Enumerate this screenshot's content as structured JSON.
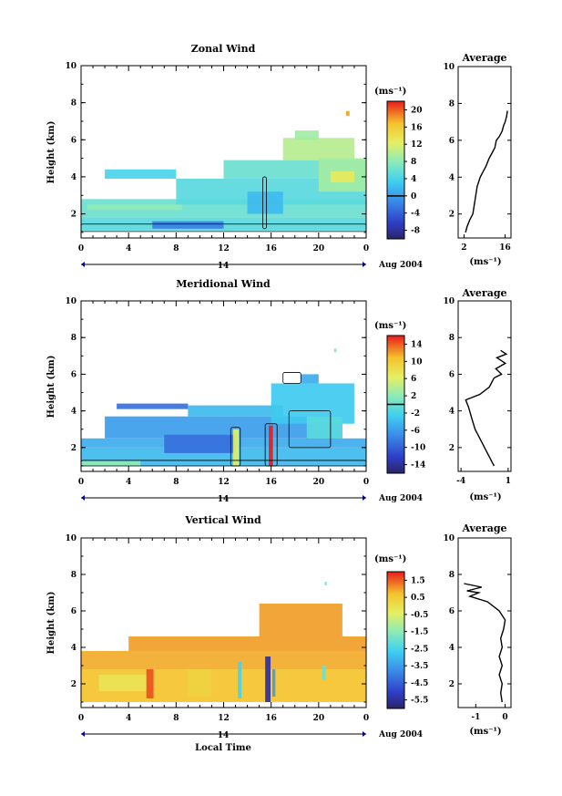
{
  "figure": {
    "x_label": "Local Time",
    "date_label": "Aug 2004",
    "day_label": "14",
    "avg_title": "Average",
    "unit_label": "(ms⁻¹)",
    "avg_unit": "(ms⁻¹)",
    "y_label": "Height (km)"
  },
  "chart_data": [
    {
      "id": "zonal",
      "type": "heatmap",
      "title": "Zonal Wind",
      "ylabel": "Height (km)",
      "x_ticks": [
        "0",
        "4",
        "8",
        "12",
        "16",
        "20",
        "0"
      ],
      "xlim": [
        0,
        24
      ],
      "ylim": [
        0.7,
        10
      ],
      "y_ticks": [
        "2",
        "4",
        "6",
        "8",
        "10"
      ],
      "cbar": {
        "ticks": [
          "20",
          "16",
          "12",
          "8",
          "4",
          "0",
          "-4",
          "-8"
        ],
        "range": [
          -10,
          22
        ],
        "zero": 0
      },
      "profile": {
        "title": "Average",
        "x_ticks": [
          "2",
          "16"
        ],
        "xlim": [
          0,
          18
        ],
        "ylim": [
          0.7,
          10
        ],
        "y_ticks": [
          "2",
          "4",
          "6",
          "8",
          "10"
        ],
        "points": [
          [
            2.5,
            1.0
          ],
          [
            3,
            1.3
          ],
          [
            4,
            1.7
          ],
          [
            5,
            2.0
          ],
          [
            5.5,
            2.5
          ],
          [
            6,
            3.0
          ],
          [
            6.5,
            3.5
          ],
          [
            7.5,
            4.0
          ],
          [
            8.5,
            4.3
          ],
          [
            9.5,
            4.6
          ],
          [
            10.5,
            5.0
          ],
          [
            11.5,
            5.3
          ],
          [
            12.5,
            5.6
          ],
          [
            13,
            6.0
          ],
          [
            14,
            6.2
          ],
          [
            15,
            6.5
          ],
          [
            15.5,
            6.8
          ],
          [
            16,
            7.0
          ],
          [
            16.5,
            7.3
          ],
          [
            16.8,
            7.6
          ]
        ]
      },
      "heat": [
        {
          "x": 0,
          "y": 1.8,
          "w": 24,
          "h": 1.0,
          "v": 6
        },
        {
          "x": 0,
          "y": 1.1,
          "w": 24,
          "h": 0.7,
          "v": 5
        },
        {
          "x": 0.5,
          "y": 2.2,
          "w": 8,
          "h": 0.3,
          "v": 8
        },
        {
          "x": 8,
          "y": 2.5,
          "w": 16,
          "h": 1.4,
          "v": 5
        },
        {
          "x": 12,
          "y": 3.9,
          "w": 12,
          "h": 1.0,
          "v": 6
        },
        {
          "x": 2,
          "y": 3.9,
          "w": 6,
          "h": 0.5,
          "v": 4
        },
        {
          "x": 17,
          "y": 4.9,
          "w": 6,
          "h": 1.2,
          "v": 10
        },
        {
          "x": 20,
          "y": 3.2,
          "w": 4,
          "h": 1.8,
          "v": 9
        },
        {
          "x": 21,
          "y": 3.7,
          "w": 2,
          "h": 0.6,
          "v": 13
        },
        {
          "x": 18,
          "y": 6.0,
          "w": 2,
          "h": 0.5,
          "v": 9
        },
        {
          "x": 22.3,
          "y": 7.3,
          "w": 0.3,
          "h": 0.25,
          "v": 18
        },
        {
          "x": 14,
          "y": 2.0,
          "w": 3,
          "h": 1.2,
          "v": 2
        },
        {
          "x": 6,
          "y": 1.2,
          "w": 6,
          "h": 0.4,
          "v": -2
        }
      ],
      "contours": [
        {
          "x": 15.3,
          "y": 1.2,
          "w": 0.3,
          "h": 2.8
        },
        {
          "x": 0,
          "y": 1.05,
          "w": 24,
          "h": 0.4
        }
      ]
    },
    {
      "id": "meridional",
      "type": "heatmap",
      "title": "Meridional Wind",
      "ylabel": "Height (km)",
      "x_ticks": [
        "0",
        "4",
        "8",
        "12",
        "16",
        "20",
        "0"
      ],
      "xlim": [
        0,
        24
      ],
      "ylim": [
        0.7,
        10
      ],
      "y_ticks": [
        "2",
        "4",
        "6",
        "8",
        "10"
      ],
      "cbar": {
        "ticks": [
          "14",
          "10",
          "6",
          "2",
          "-2",
          "-6",
          "-10",
          "-14"
        ],
        "range": [
          -16,
          16
        ],
        "zero": 0
      },
      "profile": {
        "title": "Average",
        "x_ticks": [
          "-4",
          "1"
        ],
        "xlim": [
          -4.3,
          1.3
        ],
        "ylim": [
          0.7,
          10
        ],
        "y_ticks": [
          "2",
          "4",
          "6",
          "8",
          "10"
        ],
        "points": [
          [
            -0.5,
            1.0
          ],
          [
            -1.0,
            1.5
          ],
          [
            -1.5,
            2.0
          ],
          [
            -2.0,
            2.5
          ],
          [
            -2.5,
            3.0
          ],
          [
            -2.8,
            3.5
          ],
          [
            -3.2,
            4.2
          ],
          [
            -3.5,
            4.6
          ],
          [
            -2.0,
            4.9
          ],
          [
            -1.0,
            5.3
          ],
          [
            -0.5,
            5.8
          ],
          [
            0.3,
            6.0
          ],
          [
            -0.3,
            6.3
          ],
          [
            0.7,
            6.6
          ],
          [
            -0.2,
            6.9
          ],
          [
            0.8,
            7.1
          ],
          [
            0.2,
            7.3
          ]
        ]
      },
      "heat": [
        {
          "x": 0,
          "y": 1.0,
          "w": 24,
          "h": 1.0,
          "v": -4
        },
        {
          "x": 0,
          "y": 2.0,
          "w": 24,
          "h": 0.5,
          "v": -5
        },
        {
          "x": 2,
          "y": 2.5,
          "w": 20,
          "h": 1.2,
          "v": -6
        },
        {
          "x": 7,
          "y": 1.7,
          "w": 6,
          "h": 1.0,
          "v": -9
        },
        {
          "x": 3,
          "y": 4.1,
          "w": 6,
          "h": 0.3,
          "v": -9
        },
        {
          "x": 9,
          "y": 3.7,
          "w": 8,
          "h": 0.6,
          "v": -4
        },
        {
          "x": 16,
          "y": 3.3,
          "w": 7,
          "h": 2.2,
          "v": -3
        },
        {
          "x": 18.5,
          "y": 5.5,
          "w": 1.5,
          "h": 0.5,
          "v": -5
        },
        {
          "x": 19,
          "y": 2.5,
          "w": 3,
          "h": 1.2,
          "v": -1
        },
        {
          "x": 12.8,
          "y": 1.0,
          "w": 0.5,
          "h": 2.0,
          "v": 6
        },
        {
          "x": 15.8,
          "y": 1.0,
          "w": 0.35,
          "h": 2.2,
          "v": 16
        },
        {
          "x": 21.3,
          "y": 7.2,
          "w": 0.2,
          "h": 0.2,
          "v": 1
        },
        {
          "x": 0,
          "y": 1.0,
          "w": 5,
          "h": 0.3,
          "v": 2
        }
      ],
      "contours": [
        {
          "x": 12.6,
          "y": 1.0,
          "w": 0.8,
          "h": 2.1
        },
        {
          "x": 15.5,
          "y": 1.0,
          "w": 1.0,
          "h": 2.3
        },
        {
          "x": 17.5,
          "y": 2.0,
          "w": 3.5,
          "h": 2.0
        },
        {
          "x": 17.0,
          "y": 5.5,
          "w": 1.5,
          "h": 0.6
        },
        {
          "x": 0,
          "y": 1.0,
          "w": 24,
          "h": 0.3
        }
      ]
    },
    {
      "id": "vertical",
      "type": "heatmap",
      "title": "Vertical Wind",
      "ylabel": "Height (km)",
      "xlabel": "Local Time",
      "x_ticks": [
        "0",
        "4",
        "8",
        "12",
        "16",
        "20",
        "0"
      ],
      "xlim": [
        0,
        24
      ],
      "ylim": [
        0.7,
        10
      ],
      "y_ticks": [
        "2",
        "4",
        "6",
        "8",
        "10"
      ],
      "cbar": {
        "ticks": [
          "1.5",
          "0.5",
          "-0.5",
          "-1.5",
          "-2.5",
          "-3.5",
          "-4.5",
          "-5.5"
        ],
        "range": [
          -6,
          2
        ],
        "zero": null
      },
      "profile": {
        "title": "Average",
        "x_ticks": [
          "-1",
          "0"
        ],
        "xlim": [
          -1.6,
          0.2
        ],
        "ylim": [
          0.7,
          10
        ],
        "y_ticks": [
          "2",
          "4",
          "6",
          "8",
          "10"
        ],
        "points": [
          [
            -0.1,
            1.0
          ],
          [
            -0.15,
            1.5
          ],
          [
            -0.1,
            2.0
          ],
          [
            -0.2,
            2.5
          ],
          [
            -0.1,
            3.0
          ],
          [
            -0.2,
            3.5
          ],
          [
            -0.1,
            4.0
          ],
          [
            -0.15,
            4.5
          ],
          [
            -0.05,
            5.0
          ],
          [
            0.0,
            5.5
          ],
          [
            -0.2,
            6.0
          ],
          [
            -0.6,
            6.5
          ],
          [
            -1.2,
            6.8
          ],
          [
            -0.9,
            7.0
          ],
          [
            -1.3,
            7.1
          ],
          [
            -0.8,
            7.3
          ],
          [
            -1.4,
            7.5
          ]
        ]
      },
      "heat": [
        {
          "x": 0,
          "y": 1.0,
          "w": 24,
          "h": 1.8,
          "v": 0.7
        },
        {
          "x": 0,
          "y": 2.8,
          "w": 24,
          "h": 1.0,
          "v": 0.9
        },
        {
          "x": 4,
          "y": 3.8,
          "w": 20,
          "h": 0.8,
          "v": 1.0
        },
        {
          "x": 15,
          "y": 4.6,
          "w": 7,
          "h": 1.8,
          "v": 1.0
        },
        {
          "x": 1.5,
          "y": 1.6,
          "w": 4,
          "h": 0.9,
          "v": -0.1
        },
        {
          "x": 5.5,
          "y": 1.2,
          "w": 0.6,
          "h": 1.6,
          "v": 1.6
        },
        {
          "x": 9,
          "y": 1.3,
          "w": 2,
          "h": 1.5,
          "v": 0.3
        },
        {
          "x": 13.2,
          "y": 1.2,
          "w": 0.3,
          "h": 2.0,
          "v": -2.5
        },
        {
          "x": 15.5,
          "y": 1.0,
          "w": 0.45,
          "h": 2.5,
          "v": -5.5
        },
        {
          "x": 16.1,
          "y": 1.3,
          "w": 0.25,
          "h": 1.5,
          "v": -3.5
        },
        {
          "x": 20.3,
          "y": 2.2,
          "w": 0.3,
          "h": 0.8,
          "v": -2.0
        },
        {
          "x": 20.5,
          "y": 7.4,
          "w": 0.2,
          "h": 0.2,
          "v": -1.5
        }
      ],
      "contours": []
    }
  ]
}
